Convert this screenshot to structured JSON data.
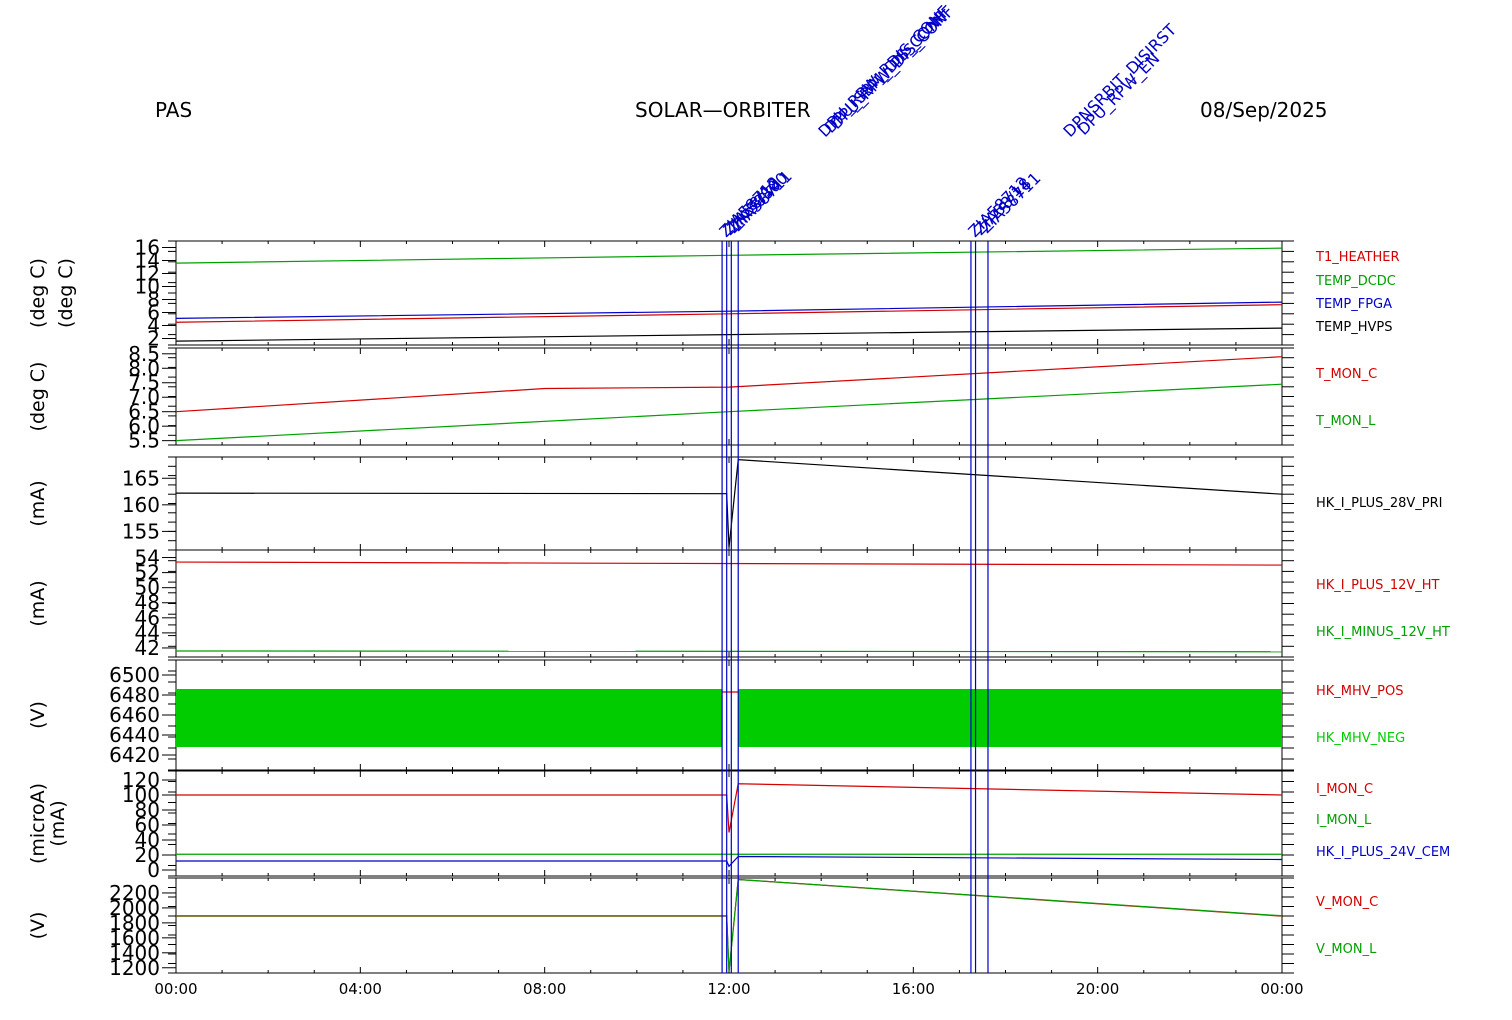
{
  "header": {
    "instrument": "PAS",
    "mission": "SOLAR—ORBITER",
    "date": "08/Sep/2025"
  },
  "colors": {
    "red": "#d40000",
    "green": "#00a000",
    "blue": "#0000c8",
    "black": "#000000",
    "bright_green": "#00cc00"
  },
  "events": {
    "groups": [
      {
        "lines": [
          11.85,
          11.95,
          12.05,
          12.2
        ],
        "labels": [
          "ZIA58712",
          "ZIA58/18",
          "ZIA58800",
          "ZIA58711"
        ]
      },
      {
        "lines": [
          17.25,
          17.35,
          17.62
        ],
        "labels": [
          "ZIA58712",
          "ZIA58/18",
          "ZIA58711"
        ]
      }
    ],
    "garbled_labels_left": [
      "DPU_RPW_RDIS_CONF",
      "DPU_SBM_DIS_CONF",
      "DPU_RPW_DIS_CONF"
    ],
    "garbled_labels_right": [
      "DPNSRBIT_DISIRST",
      "DPU_RPW_EN"
    ]
  },
  "x_axis": {
    "ticks": [
      "00:00",
      "04:00",
      "08:00",
      "12:00",
      "16:00",
      "20:00",
      "00:00"
    ]
  },
  "chart_data": [
    {
      "type": "line",
      "ylabel": "(deg C)",
      "ylabel2": "(deg C)",
      "yticks": [
        2,
        4,
        6,
        8,
        10,
        12,
        14,
        16
      ],
      "ylim": [
        1,
        17
      ],
      "series": [
        {
          "name": "T1_HEATHER",
          "color": "red",
          "x": [
            0,
            12,
            24
          ],
          "y": [
            4.5,
            5.8,
            7.2
          ]
        },
        {
          "name": "TEMP_DCDC",
          "color": "green",
          "x": [
            0,
            12,
            24
          ],
          "y": [
            13.6,
            14.8,
            15.9
          ]
        },
        {
          "name": "TEMP_FPGA",
          "color": "blue",
          "x": [
            0,
            12,
            24
          ],
          "y": [
            5.1,
            6.2,
            7.6
          ]
        },
        {
          "name": "TEMP_HVPS",
          "color": "black",
          "x": [
            0,
            12,
            24
          ],
          "y": [
            1.6,
            2.6,
            3.6
          ]
        }
      ]
    },
    {
      "type": "line",
      "ylabel": "(deg C)",
      "yticks": [
        5.5,
        6.0,
        6.5,
        7.0,
        7.5,
        8.0,
        8.5
      ],
      "ylim": [
        5.35,
        8.7
      ],
      "series": [
        {
          "name": "T_MON_C",
          "color": "red",
          "x": [
            0,
            8,
            12,
            24
          ],
          "y": [
            6.5,
            7.3,
            7.35,
            8.4
          ]
        },
        {
          "name": "T_MON_L",
          "color": "green",
          "x": [
            0,
            12,
            24
          ],
          "y": [
            5.5,
            6.5,
            7.45
          ]
        }
      ]
    },
    {
      "type": "line",
      "ylabel": "(mA)",
      "yticks": [
        155,
        160,
        165
      ],
      "ylim": [
        151.5,
        169
      ],
      "series": [
        {
          "name": "HK_I_PLUS_28V_PRI",
          "color": "black",
          "x": [
            0,
            11.95,
            12.0,
            12.2,
            24
          ],
          "y": [
            162.2,
            162.1,
            152.0,
            168.5,
            162.0
          ]
        }
      ]
    },
    {
      "type": "line",
      "ylabel": "(mA)",
      "yticks": [
        42,
        44,
        46,
        48,
        50,
        52,
        54
      ],
      "ylim": [
        40.8,
        55.0
      ],
      "series": [
        {
          "name": "HK_I_PLUS_12V_HT",
          "color": "red",
          "x": [
            0,
            24
          ],
          "y": [
            53.4,
            53.0
          ]
        },
        {
          "name": "HK_I_MINUS_12V_HT",
          "color": "green",
          "x": [
            0,
            24
          ],
          "y": [
            41.6,
            41.5
          ]
        }
      ]
    },
    {
      "type": "line",
      "ylabel": "(V)",
      "yticks": [
        6420,
        6440,
        6460,
        6480,
        6500
      ],
      "ylim": [
        6405,
        6515
      ],
      "series": [
        {
          "name": "HK_MHV_POS",
          "color": "red",
          "x": [
            0,
            24
          ],
          "y": [
            6483,
            6483
          ]
        },
        {
          "name": "HK_MHV_NEG",
          "color": "bright_green",
          "x": [
            0,
            24
          ],
          "y": [
            6428,
            6486
          ]
        }
      ]
    },
    {
      "type": "line",
      "ylabel": "(microA)",
      "ylabel2": "(mA)",
      "yticks": [
        0,
        20,
        40,
        60,
        80,
        100,
        120
      ],
      "ylim": [
        -8,
        132
      ],
      "series": [
        {
          "name": "I_MON_C",
          "color": "red",
          "x": [
            0,
            11.95,
            12.0,
            12.2,
            24
          ],
          "y": [
            100,
            100,
            50,
            115,
            100
          ]
        },
        {
          "name": "I_MON_L",
          "color": "green",
          "x": [
            0,
            24
          ],
          "y": [
            21,
            21
          ]
        },
        {
          "name": "HK_I_PLUS_24V_CEM",
          "color": "blue",
          "x": [
            0,
            11.95,
            12.0,
            12.2,
            24
          ],
          "y": [
            12,
            12,
            5,
            18,
            14
          ]
        }
      ]
    },
    {
      "type": "line",
      "ylabel": "(V)",
      "yticks": [
        1200,
        1400,
        1600,
        1800,
        2000,
        2200
      ],
      "ylim": [
        1130,
        2400
      ],
      "series": [
        {
          "name": "V_MON_C",
          "color": "red",
          "x": [
            0,
            11.95,
            12.0,
            12.2,
            24
          ],
          "y": [
            1890,
            1890,
            1150,
            2380,
            1890
          ]
        },
        {
          "name": "V_MON_L",
          "color": "green",
          "x": [
            0,
            11.95,
            12.0,
            12.2,
            24
          ],
          "y": [
            1895,
            1895,
            1150,
            2380,
            1895
          ]
        }
      ]
    }
  ]
}
